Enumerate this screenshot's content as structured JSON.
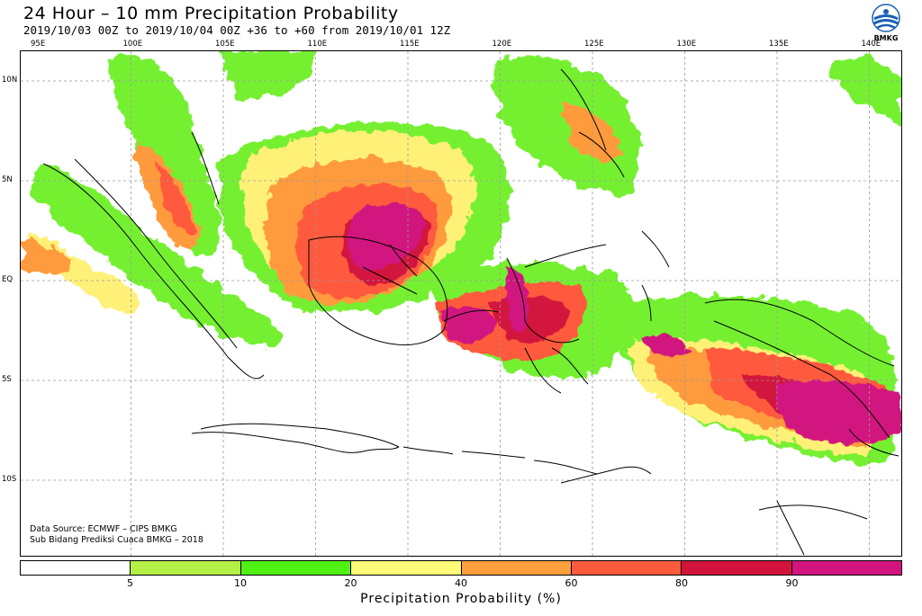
{
  "header": {
    "title": "24 Hour – 10 mm Precipitation Probability",
    "subtitle": "2019/10/03 00Z to 2019/10/04 00Z +36 to +60 from 2019/10/01 12Z"
  },
  "logo": {
    "text": "BMKG",
    "icon": "bmkg-logo-icon"
  },
  "map": {
    "lon_ticks": [
      "95E",
      "100E",
      "105E",
      "110E",
      "115E",
      "120E",
      "125E",
      "130E",
      "135E",
      "140E"
    ],
    "lat_ticks": [
      "10N",
      "5N",
      "EQ",
      "5S",
      "10S"
    ],
    "lon_range": [
      95,
      140
    ],
    "lat_range": [
      -14.5,
      11
    ],
    "grid": "dashed"
  },
  "footnote": {
    "line1": "Data Source: ECMWF – CIPS BMKG",
    "line2": "Sub Bidang Prediksi Cuaca BMKG – 2018"
  },
  "legend": {
    "title": "Precipitation Probability (%)",
    "colors": [
      "#ffffff",
      "#b4f046",
      "#50f014",
      "#fffa78",
      "#ffa03c",
      "#ff5a3c",
      "#d2143c",
      "#d2147f"
    ],
    "labels": [
      "5",
      "10",
      "20",
      "40",
      "60",
      "80",
      "90"
    ]
  }
}
